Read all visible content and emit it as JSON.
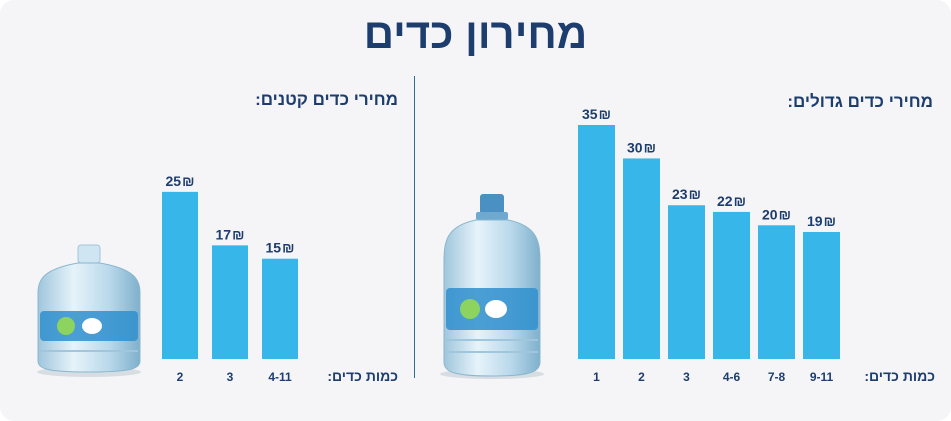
{
  "title": "מחירון כדים",
  "large": {
    "section_title": "מחירי כדים גדולים:",
    "qty_label": "כמות כדים:"
  },
  "small": {
    "section_title": "מחירי כדים קטנים:",
    "qty_label": "כמות כדים:"
  },
  "currency_symbol": "₪",
  "colors": {
    "bar": "#37b7e9",
    "text": "#1c3d6e",
    "divider": "#2a6f93"
  },
  "images": {
    "large_bottle": "large-water-bottle-image",
    "small_bottle": "small-water-bottle-image"
  },
  "chart_data": [
    {
      "type": "bar",
      "categories": [
        "1",
        "2",
        "3",
        "4-6",
        "7-8",
        "9-11"
      ],
      "values": [
        35,
        30,
        23,
        22,
        20,
        19
      ],
      "title": "מחירי כדים גדולים:",
      "xlabel": "כמות כדים:",
      "ylabel": "",
      "ylim": [
        0,
        35
      ],
      "grid": false,
      "data_label_suffix": "₪"
    },
    {
      "type": "bar",
      "categories": [
        "2",
        "3",
        "4-11"
      ],
      "values": [
        25,
        17,
        15
      ],
      "title": "מחירי כדים קטנים:",
      "xlabel": "כמות כדים:",
      "ylabel": "",
      "ylim": [
        0,
        35
      ],
      "grid": false,
      "data_label_suffix": "₪"
    }
  ]
}
